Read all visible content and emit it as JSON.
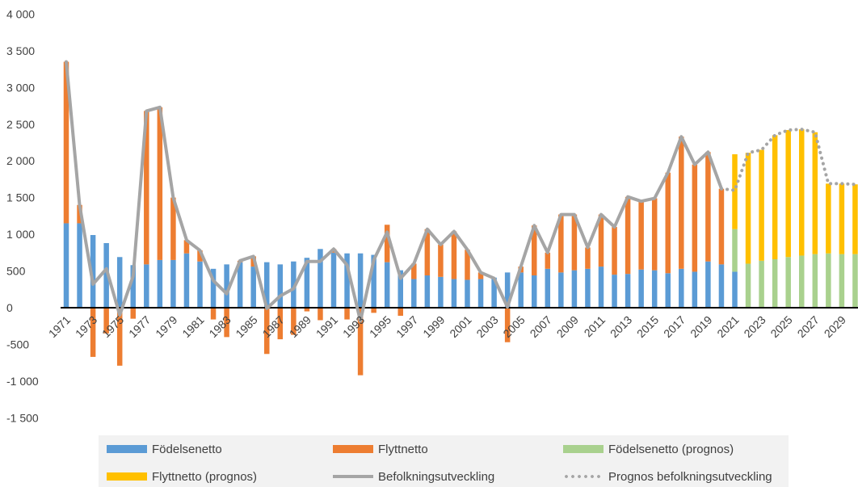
{
  "chart_data": {
    "type": "bar",
    "ylim": [
      -1500,
      4000
    ],
    "y_ticks": [
      "4 000",
      "3 500",
      "3 000",
      "2 500",
      "2 000",
      "1 500",
      "1 000",
      "500",
      "0",
      "-500",
      "-1 000",
      "-1 500"
    ],
    "y_tick_values": [
      4000,
      3500,
      3000,
      2500,
      2000,
      1500,
      1000,
      500,
      0,
      -500,
      -1000,
      -1500
    ],
    "years": [
      1971,
      1972,
      1973,
      1974,
      1975,
      1976,
      1977,
      1978,
      1979,
      1980,
      1981,
      1982,
      1983,
      1984,
      1985,
      1986,
      1987,
      1988,
      1989,
      1990,
      1991,
      1992,
      1993,
      1994,
      1995,
      1996,
      1997,
      1998,
      1999,
      2000,
      2001,
      2002,
      2003,
      2004,
      2005,
      2006,
      2007,
      2008,
      2009,
      2010,
      2011,
      2012,
      2013,
      2014,
      2015,
      2016,
      2017,
      2018,
      2019,
      2020,
      2021,
      2022,
      2023,
      2024,
      2025,
      2026,
      2027,
      2028,
      2029,
      2030
    ],
    "x_tick_labels": [
      "1971",
      "1973",
      "1975",
      "1977",
      "1979",
      "1981",
      "1983",
      "1985",
      "1987",
      "1989",
      "1991",
      "1993",
      "1995",
      "1997",
      "1999",
      "2001",
      "2003",
      "2005",
      "2007",
      "2009",
      "2011",
      "2013",
      "2015",
      "2017",
      "2019",
      "2021",
      "2023",
      "2025",
      "2027",
      "2029"
    ],
    "series": [
      {
        "name": "Födelsenetto",
        "color": "#5b9bd5",
        "values": [
          1150,
          1150,
          990,
          880,
          690,
          580,
          590,
          650,
          650,
          740,
          630,
          530,
          590,
          620,
          560,
          620,
          590,
          630,
          680,
          800,
          750,
          740,
          740,
          720,
          620,
          510,
          390,
          440,
          420,
          390,
          380,
          390,
          410,
          480,
          480,
          440,
          530,
          480,
          510,
          530,
          560,
          450,
          460,
          520,
          510,
          470,
          530,
          490,
          630,
          590,
          490,
          null,
          null,
          null,
          null,
          null,
          null,
          null,
          null,
          null
        ]
      },
      {
        "name": "Flyttnetto",
        "color": "#ed7d31",
        "values": [
          2200,
          250,
          -670,
          -350,
          -790,
          -150,
          2090,
          2080,
          850,
          180,
          150,
          -160,
          -400,
          20,
          140,
          -630,
          -430,
          -370,
          -50,
          -170,
          50,
          -160,
          -920,
          -70,
          510,
          -110,
          210,
          630,
          440,
          650,
          410,
          90,
          -10,
          -470,
          80,
          680,
          220,
          790,
          760,
          290,
          710,
          650,
          1050,
          930,
          980,
          1370,
          1800,
          1460,
          1490,
          1030,
          null,
          null,
          null,
          null,
          null,
          null,
          null,
          null,
          null,
          null
        ]
      },
      {
        "name": "Födelsenetto (prognos)",
        "color": "#a9d18e",
        "values": [
          null,
          null,
          null,
          null,
          null,
          null,
          null,
          null,
          null,
          null,
          null,
          null,
          null,
          null,
          null,
          null,
          null,
          null,
          null,
          null,
          null,
          null,
          null,
          null,
          null,
          null,
          null,
          null,
          null,
          null,
          null,
          null,
          null,
          null,
          null,
          null,
          null,
          null,
          null,
          null,
          null,
          null,
          null,
          null,
          null,
          null,
          null,
          null,
          null,
          null,
          580,
          600,
          640,
          660,
          690,
          710,
          730,
          740,
          730,
          730
        ]
      },
      {
        "name": "Flyttnetto (prognos)",
        "color": "#ffc000",
        "values": [
          null,
          null,
          null,
          null,
          null,
          null,
          null,
          null,
          null,
          null,
          null,
          null,
          null,
          null,
          null,
          null,
          null,
          null,
          null,
          null,
          null,
          null,
          null,
          null,
          null,
          null,
          null,
          null,
          null,
          null,
          null,
          null,
          null,
          null,
          null,
          null,
          null,
          null,
          null,
          null,
          null,
          null,
          null,
          null,
          null,
          null,
          null,
          null,
          null,
          null,
          1020,
          1510,
          1510,
          1690,
          1730,
          1720,
          1660,
          950,
          960,
          950
        ]
      },
      {
        "name": "Befolkningsutveckling",
        "color": "#a5a5a5",
        "values": [
          3350,
          1400,
          320,
          530,
          -100,
          430,
          2680,
          2730,
          1500,
          920,
          780,
          370,
          190,
          640,
          700,
          -10,
          160,
          260,
          630,
          630,
          800,
          580,
          -180,
          650,
          1030,
          400,
          600,
          1070,
          860,
          1040,
          790,
          480,
          400,
          10,
          560,
          1120,
          750,
          1270,
          1270,
          820,
          1270,
          1100,
          1510,
          1450,
          1490,
          1840,
          2330,
          1950,
          2120,
          1620,
          null,
          null,
          null,
          null,
          null,
          null,
          null,
          null,
          null,
          null
        ]
      },
      {
        "name": "Prognos befolkningsutveckling",
        "color": "#a5a5a5",
        "values": [
          null,
          null,
          null,
          null,
          null,
          null,
          null,
          null,
          null,
          null,
          null,
          null,
          null,
          null,
          null,
          null,
          null,
          null,
          null,
          null,
          null,
          null,
          null,
          null,
          null,
          null,
          null,
          null,
          null,
          null,
          null,
          null,
          null,
          null,
          null,
          null,
          null,
          null,
          null,
          null,
          null,
          null,
          null,
          null,
          null,
          null,
          null,
          null,
          null,
          1620,
          1600,
          2110,
          2150,
          2350,
          2420,
          2430,
          2390,
          1690,
          1690,
          1680
        ]
      }
    ]
  },
  "legend": [
    {
      "label": "Födelsenetto",
      "kind": "bar",
      "color": "#5b9bd5"
    },
    {
      "label": "Flyttnetto",
      "kind": "bar",
      "color": "#ed7d31"
    },
    {
      "label": "Födelsenetto (prognos)",
      "kind": "bar",
      "color": "#a9d18e"
    },
    {
      "label": "Flyttnetto (prognos)",
      "kind": "bar",
      "color": "#ffc000"
    },
    {
      "label": "Befolkningsutveckling",
      "kind": "line",
      "color": "#a5a5a5"
    },
    {
      "label": "Prognos befolkningsutveckling",
      "kind": "dotted",
      "color": "#a5a5a5"
    }
  ]
}
